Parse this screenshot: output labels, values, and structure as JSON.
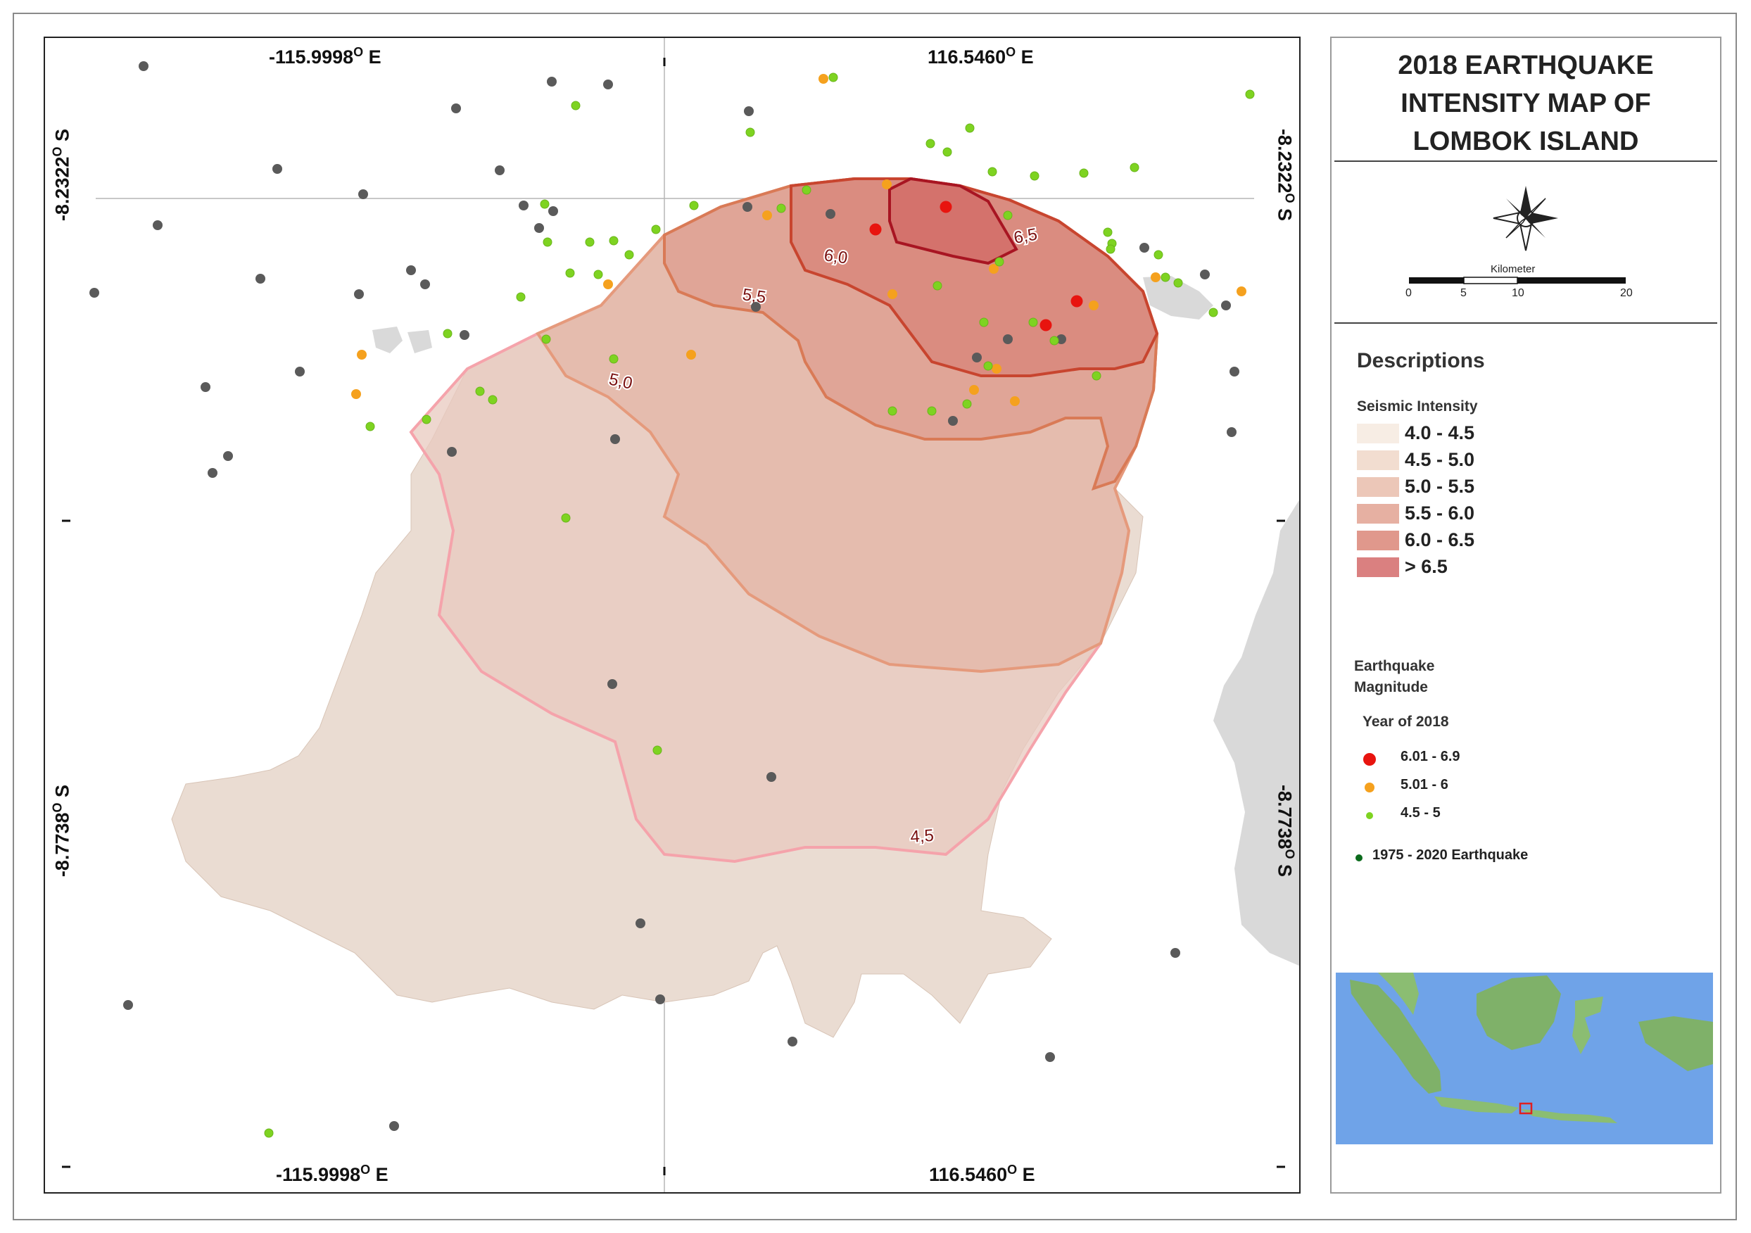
{
  "title": "2018 EARTHQUAKE INTENSITY MAP OF LOMBOK ISLAND",
  "coordinates": {
    "top_left": "-115.9998",
    "top_right": "116.5460",
    "bottom_left": "-115.9998",
    "bottom_right": "116.5460",
    "left_upper": "-8.2322",
    "left_lower": "-8.7738",
    "right_upper": "-8.2322",
    "right_lower": "-8.7738",
    "deg_mark": "O",
    "east": "E",
    "south": "S"
  },
  "scale_bar": {
    "label": "Kilometer",
    "ticks": [
      "0",
      "5",
      "10",
      "20"
    ]
  },
  "legend": {
    "descriptions_heading": "Descriptions",
    "seismic_heading": "Seismic Intensity",
    "intensity_classes": [
      {
        "label": "4.0 - 4.5",
        "color": "#f7ede4"
      },
      {
        "label": "4.5 - 5.0",
        "color": "#f2ddd0"
      },
      {
        "label": "5.0 - 5.5",
        "color": "#ecc7b8"
      },
      {
        "label": "5.5 - 6.0",
        "color": "#e6b0a2"
      },
      {
        "label": "6.0 - 6.5",
        "color": "#e0988c"
      },
      {
        "label": "> 6.5",
        "color": "#da8080"
      }
    ],
    "earthquake_heading": [
      "Earthquake",
      "Magnitude"
    ],
    "year_heading": "Year of 2018",
    "magnitudes": [
      {
        "label": "6.01 - 6.9",
        "color": "#e8140f"
      },
      {
        "label": "5.01 - 6",
        "color": "#f5a11e"
      },
      {
        "label": "4.5 - 5",
        "color": "#7ed321"
      }
    ],
    "historic": {
      "label": "1975 - 2020 Earthquake",
      "color": "#0b6b1c"
    }
  },
  "contour_labels": [
    "4,5",
    "5,0",
    "5,5",
    "6,0",
    "6,5"
  ],
  "colors": {
    "island": "#eadcd2",
    "contour_45": "#f5a3ab",
    "contour_50": "#e59a7c",
    "contour_55": "#d97a56",
    "contour_60": "#c8452f",
    "contour_65": "#a81522",
    "historic_point": "#5a5a5a",
    "water_inset": "#6fa3e8"
  }
}
